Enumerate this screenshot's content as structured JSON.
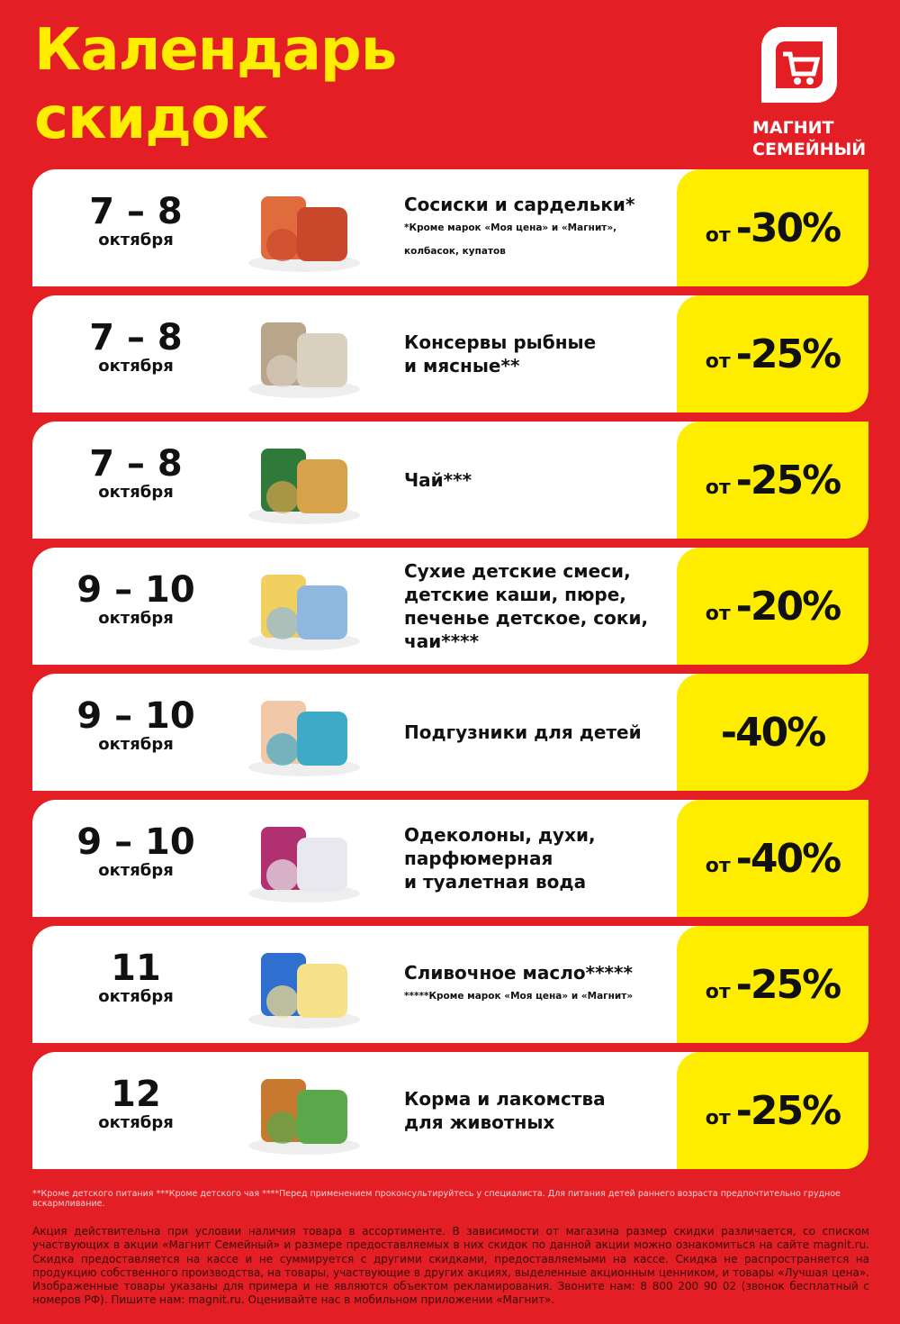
{
  "title": {
    "line1": "Календарь",
    "line2": "скидок"
  },
  "logo": {
    "icon": "cart-icon",
    "line1": "МАГНИТ",
    "line2": "СЕМЕЙНЫЙ"
  },
  "colors": {
    "background": "#e31e24",
    "accent": "#ffed00",
    "card": "#ffffff"
  },
  "items": [
    {
      "dates": "7 – 8",
      "month": "октября",
      "image": "sausages-image",
      "title": "Сосиски и сардельки*",
      "note": "*Кроме марок «Моя цена» и «Магнит»,",
      "note2": "колбасок, купатов",
      "prefix": "от",
      "discount": "-30%"
    },
    {
      "dates": "7 – 8",
      "month": "октября",
      "image": "canned-food-image",
      "title": "Консервы рыбные",
      "title2": "и мясные**",
      "prefix": "от",
      "discount": "-25%"
    },
    {
      "dates": "7 – 8",
      "month": "октября",
      "image": "tea-image",
      "title": "Чай***",
      "prefix": "от",
      "discount": "-25%"
    },
    {
      "dates": "9 – 10",
      "month": "октября",
      "image": "baby-food-image",
      "title": "Сухие детские смеси,",
      "title2": "детские каши, пюре,",
      "title3": "печенье детское, соки,",
      "title4": "чаи****",
      "prefix": "от",
      "discount": "-20%"
    },
    {
      "dates": "9 – 10",
      "month": "октября",
      "image": "diapers-image",
      "title": "Подгузники для детей",
      "discount": "-40%"
    },
    {
      "dates": "9 – 10",
      "month": "октября",
      "image": "perfume-image",
      "title": "Одеколоны, духи,",
      "title2": "парфюмерная",
      "title3": "и туалетная вода",
      "prefix": "от",
      "discount": "-40%"
    },
    {
      "dates": "11",
      "month": "октября",
      "image": "butter-image",
      "title": "Сливочное масло*****",
      "note": "*****Кроме марок «Моя цена» и «Магнит»",
      "prefix": "от",
      "discount": "-25%"
    },
    {
      "dates": "12",
      "month": "октября",
      "image": "pet-food-image",
      "title": "Корма и лакомства",
      "title2": "для животных",
      "prefix": "от",
      "discount": "-25%"
    }
  ],
  "footnotes": "**Кроме детского питания ***Кроме детского чая ****Перед применением проконсультируйтесь у специалиста. Для питания детей раннего возраста предпочтительно грудное вскармливание.",
  "legal": "Акция действительна при условии наличия товара в ассортименте. В зависимости от магазина размер скидки различается, со списком участвующих в акции «Магнит Семейный» и размере предоставляемых в них скидок по данной акции можно ознакомиться на сайте magnit.ru. Скидка предоставляется на кассе и не суммируется с другими скидками, предоставляемыми на кассе. Скидка не распространяется на продукцию собственного производства, на товары, участвующие в других акциях, выделенные акционным ценником, и товары «Лучшая цена». Изображенные товары указаны для примера и не являются объектом рекламирования. Звоните нам: 8 800 200 90 02 (звонок бесплатный с номеров РФ). Пишите нам: magnit.ru. Оценивайте нас в мобильном приложении «Магнит»."
}
